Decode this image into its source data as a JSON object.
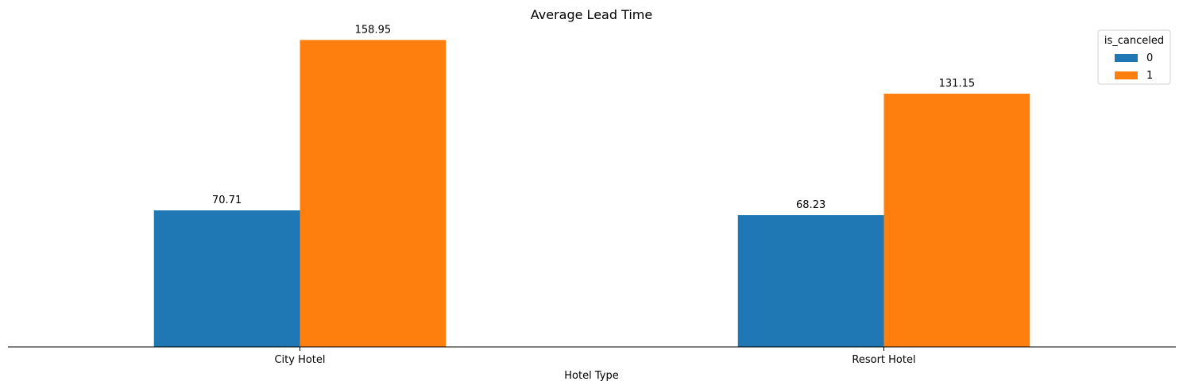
{
  "chart_data": {
    "type": "bar",
    "title": "Average Lead Time",
    "xlabel": "Hotel Type",
    "ylabel": "",
    "categories": [
      "City Hotel",
      "Resort Hotel"
    ],
    "series": [
      {
        "name": "0",
        "values": [
          70.71,
          68.23
        ],
        "value_labels": [
          "70.71",
          "68.23"
        ],
        "color": "#1f77b4"
      },
      {
        "name": "1",
        "values": [
          158.95,
          131.15
        ],
        "value_labels": [
          "158.95",
          "131.15"
        ],
        "color": "#ff7f0e"
      }
    ],
    "legend": {
      "title": "is_canceled",
      "placement": "top-right"
    },
    "ylim": [
      0,
      166.9
    ],
    "grid": false,
    "y_axis_visible": false
  }
}
